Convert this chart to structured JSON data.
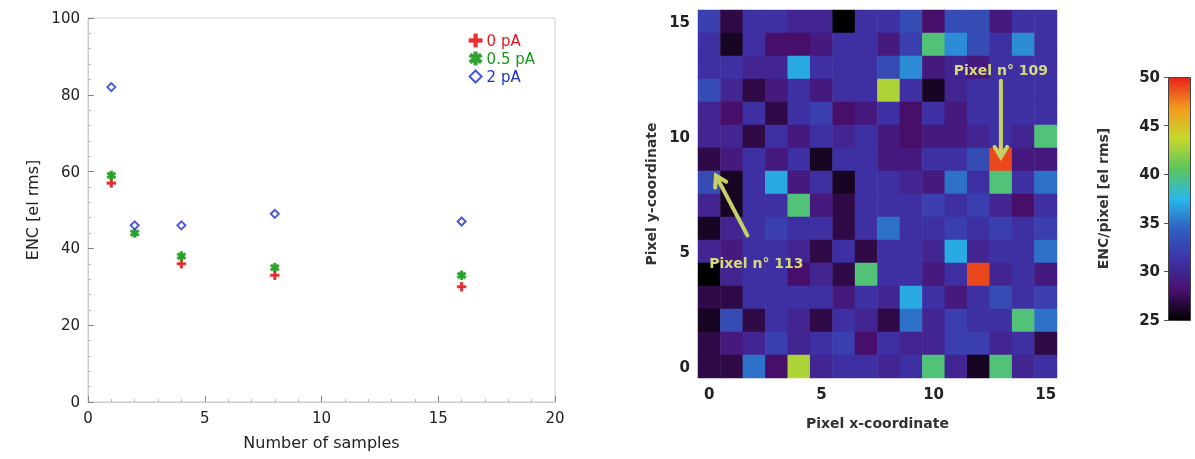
{
  "chart_data": [
    {
      "type": "scatter",
      "xlabel": "Number of samples",
      "ylabel": "ENC [el rms]",
      "x": [
        1,
        2,
        4,
        8,
        16
      ],
      "series": [
        {
          "name": "0 pA",
          "color": "#e8191e",
          "marker": "cross",
          "values": [
            57,
            null,
            36,
            33,
            30
          ]
        },
        {
          "name": "0.5 pA",
          "color": "#1a9a1a",
          "marker": "star",
          "values": [
            59,
            44,
            38,
            35,
            33
          ]
        },
        {
          "name": "2 pA",
          "color": "#1f2fd6",
          "marker": "diamond",
          "values": [
            82,
            46,
            46,
            49,
            47
          ]
        }
      ],
      "xlim": [
        0,
        20
      ],
      "xticks": [
        0,
        5,
        10,
        15,
        20
      ],
      "ylim": [
        0,
        100
      ],
      "yticks": [
        0,
        20,
        40,
        60,
        80,
        100
      ],
      "grid": false,
      "legend": "top right"
    },
    {
      "type": "heatmap",
      "xlabel": "Pixel x-coordinate",
      "ylabel": "Pixel y-coordinate",
      "clabel": "ENC/pixel [el rms]",
      "categories": [
        "0",
        null,
        null,
        null,
        null,
        "5",
        null,
        null,
        null,
        null,
        "10",
        null,
        null,
        null,
        null,
        "15"
      ],
      "y_categories": [
        "15",
        null,
        null,
        null,
        null,
        "10",
        null,
        null,
        null,
        null,
        "5",
        null,
        null,
        null,
        null,
        "0"
      ],
      "cells": [
        [
          32,
          27,
          31,
          31,
          30,
          30,
          25,
          31,
          31,
          33,
          28,
          33,
          33,
          29,
          31,
          31
        ],
        [
          31,
          26,
          31,
          28,
          28,
          29,
          31,
          31,
          29,
          32,
          40,
          36,
          33,
          31,
          36,
          31
        ],
        [
          31,
          31,
          30,
          30,
          37,
          31,
          31,
          31,
          33,
          36,
          29,
          30,
          29,
          31,
          31,
          31
        ],
        [
          33,
          30,
          27,
          29,
          31,
          29,
          31,
          31,
          43,
          31,
          26,
          30,
          31,
          31,
          31,
          31
        ],
        [
          30,
          28,
          31,
          27,
          31,
          32,
          28,
          29,
          31,
          28,
          31,
          29,
          31,
          31,
          31,
          31
        ],
        [
          30,
          30,
          27,
          31,
          29,
          31,
          30,
          31,
          29,
          28,
          29,
          29,
          30,
          31,
          30,
          40
        ],
        [
          27,
          29,
          31,
          29,
          31,
          26,
          31,
          31,
          29,
          29,
          31,
          31,
          33,
          49,
          29,
          29
        ],
        [
          33,
          26,
          31,
          37,
          29,
          31,
          26,
          31,
          31,
          30,
          29,
          35,
          31,
          40,
          31,
          35
        ],
        [
          30,
          26,
          31,
          31,
          40,
          29,
          27,
          31,
          31,
          31,
          32,
          31,
          32,
          30,
          28,
          31
        ],
        [
          26,
          30,
          31,
          32,
          31,
          31,
          27,
          31,
          35,
          31,
          31,
          32,
          31,
          32,
          31,
          32
        ],
        [
          30,
          29,
          31,
          31,
          30,
          27,
          31,
          27,
          31,
          31,
          30,
          37,
          30,
          31,
          31,
          35
        ],
        [
          25,
          30,
          31,
          31,
          28,
          30,
          27,
          40,
          31,
          31,
          29,
          31,
          49,
          30,
          31,
          29
        ],
        [
          27,
          27,
          31,
          31,
          31,
          31,
          29,
          31,
          30,
          37,
          31,
          29,
          31,
          33,
          31,
          32
        ],
        [
          26,
          33,
          27,
          31,
          30,
          27,
          31,
          30,
          27,
          35,
          30,
          32,
          31,
          31,
          40,
          35
        ],
        [
          27,
          29,
          30,
          32,
          30,
          31,
          32,
          28,
          31,
          30,
          30,
          32,
          32,
          30,
          31,
          27
        ],
        [
          27,
          27,
          35,
          28,
          43,
          30,
          31,
          31,
          30,
          31,
          40,
          30,
          26,
          40,
          30,
          31
        ]
      ],
      "clim": [
        25,
        50
      ],
      "cticks": [
        25,
        30,
        35,
        40,
        45,
        50
      ],
      "annotations": [
        "Pixel n° 109",
        "Pixel n° 113"
      ]
    }
  ]
}
